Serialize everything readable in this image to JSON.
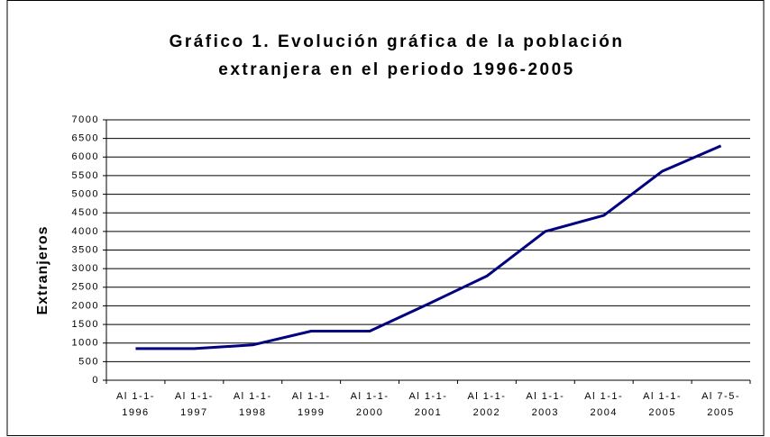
{
  "chart_data": {
    "type": "line",
    "title": [
      "Gráfico 1. Evolución gráfica de la población",
      "extranjera en el periodo 1996-2005"
    ],
    "y_label": "Extranjeros",
    "categories": [
      "Al 1-1- 1996",
      "Al 1-1- 1997",
      "Al 1-1- 1998",
      "Al 1-1- 1999",
      "Al 1-1- 2000",
      "Al 1-1- 2001",
      "Al 1-1- 2002",
      "Al 1-1- 2003",
      "Al 1-1- 2004",
      "Al 1-1- 2005",
      "Al 7-5- 2005"
    ],
    "values": [
      850,
      850,
      950,
      1320,
      1320,
      2050,
      2800,
      4000,
      4430,
      5620,
      6300
    ],
    "color": "#000080",
    "ylim": [
      0,
      7000
    ],
    "yticks": [
      0,
      500,
      1000,
      1500,
      2000,
      2500,
      3000,
      3500,
      4000,
      4500,
      5000,
      5500,
      6000,
      6500,
      7000
    ],
    "grid": true
  }
}
